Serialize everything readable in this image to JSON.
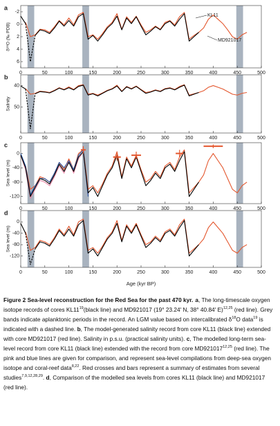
{
  "chart_data": [
    {
      "type": "line",
      "label": "a",
      "ylabel": "δ¹⁸O (‰ PDB)",
      "annotations": [
        "KL11",
        "MD921017"
      ],
      "x": [
        0,
        10,
        20,
        30,
        40,
        50,
        60,
        70,
        80,
        90,
        100,
        110,
        120,
        130,
        140,
        150,
        160,
        170,
        180,
        190,
        200,
        210,
        220,
        230,
        240,
        250,
        260,
        270,
        280,
        290,
        300,
        310,
        320,
        330,
        340,
        350,
        360,
        370,
        380,
        390,
        400,
        410,
        420,
        430,
        440,
        450,
        460,
        470
      ],
      "xlim": [
        0,
        500
      ],
      "xticks": [
        0,
        50,
        100,
        150,
        200,
        250,
        300,
        350,
        400,
        450,
        500
      ],
      "ylim": [
        -3,
        7
      ],
      "yticks": [
        -2,
        0,
        2,
        4,
        6
      ],
      "invert_y": true,
      "bands": [
        [
          14,
          28
        ],
        [
          128,
          142
        ],
        [
          448,
          462
        ]
      ],
      "series": [
        {
          "color": "#e4572e",
          "values": [
            null,
            -0.3,
            2.0,
            1.7,
            0.8,
            0.9,
            1.3,
            0.4,
            -0.6,
            0.1,
            -1.0,
            0.1,
            -1.5,
            -1.9,
            2.0,
            1.7,
            2.4,
            1.5,
            0.4,
            -0.3,
            -1.7,
            0.8,
            -1.2,
            -0.3,
            -1.3,
            0.1,
            1.3,
            0.9,
            0.3,
            0.8,
            -0.3,
            -0.6,
            0.1,
            -1.2,
            -1.9,
            2.4,
            1.8,
            1.3,
            0.6,
            -0.8,
            -1.5,
            -0.8,
            -0.1,
            0.9,
            2.0,
            2.4,
            1.7,
            1.3
          ]
        },
        {
          "color": "#000000",
          "values": [
            -1.3,
            -0.1,
            null,
            1.8,
            0.9,
            1.1,
            1.5,
            0.6,
            -0.5,
            0.3,
            -0.6,
            0.3,
            -1.2,
            -1.7,
            2.4,
            1.8,
            2.7,
            1.7,
            0.6,
            -0.1,
            -1.3,
            0.9,
            -1.0,
            -0.1,
            -1.2,
            0.3,
            1.7,
            1.1,
            0.4,
            0.9,
            -0.1,
            -0.5,
            0.3,
            -0.8,
            -1.7,
            2.7,
            2.0,
            1.3,
            null,
            null,
            null,
            null,
            null,
            null,
            null,
            null,
            null,
            null
          ]
        },
        {
          "color": "#000000",
          "dashed": true,
          "values": [
            null,
            -0.1,
            6,
            1.8,
            null,
            null,
            null,
            null,
            null,
            null,
            null,
            null,
            null,
            null,
            null,
            null,
            null,
            null,
            null,
            null,
            null,
            null,
            null,
            null,
            null,
            null,
            null,
            null,
            null,
            null,
            null,
            null,
            null,
            null,
            null,
            null,
            null,
            null,
            null,
            null,
            null,
            null,
            null,
            null,
            null,
            null,
            null,
            null
          ]
        }
      ]
    },
    {
      "type": "line",
      "label": "b",
      "ylabel": "Salinity",
      "x": [
        0,
        10,
        20,
        30,
        40,
        50,
        60,
        70,
        80,
        90,
        100,
        110,
        120,
        130,
        140,
        150,
        160,
        170,
        180,
        190,
        200,
        210,
        220,
        230,
        240,
        250,
        260,
        270,
        280,
        290,
        300,
        310,
        320,
        330,
        340,
        350,
        360,
        370,
        380,
        390,
        400,
        410,
        420,
        430,
        440,
        450,
        460,
        470
      ],
      "xlim": [
        0,
        500
      ],
      "xticks": [
        0,
        50,
        100,
        150,
        200,
        250,
        300,
        350,
        400,
        450,
        500
      ],
      "ylim": [
        35,
        62
      ],
      "yticks": [
        40,
        50
      ],
      "invert_y": true,
      "bands": [
        [
          14,
          28
        ],
        [
          128,
          142
        ],
        [
          448,
          462
        ]
      ],
      "series": [
        {
          "color": "#e4572e",
          "values": [
            null,
            41.4,
            44,
            43.6,
            42.6,
            42.8,
            43.2,
            42.2,
            41,
            41.8,
            40.6,
            41.8,
            40,
            39.6,
            44,
            43.6,
            44.4,
            43.4,
            42.2,
            41.4,
            39.8,
            42.6,
            40.4,
            41.4,
            40.2,
            41.8,
            43.2,
            42.8,
            42,
            42.6,
            41.4,
            41,
            41.8,
            40.4,
            39.6,
            44.4,
            43.8,
            43.2,
            42.4,
            40.8,
            40,
            40.8,
            41.6,
            42.8,
            44,
            44.4,
            43.6,
            43.2
          ]
        },
        {
          "color": "#000000",
          "values": [
            40.2,
            41.6,
            null,
            43.8,
            42.8,
            43,
            43.4,
            42.4,
            41.2,
            42,
            41,
            42,
            40.4,
            39.8,
            44.4,
            43.8,
            44.8,
            43.6,
            42.4,
            41.6,
            40.2,
            42.8,
            40.6,
            41.6,
            40.4,
            42,
            43.6,
            43,
            42.2,
            42.8,
            41.6,
            41.2,
            42,
            40.8,
            39.8,
            44.8,
            44,
            43.2,
            null,
            null,
            null,
            null,
            null,
            null,
            null,
            null,
            null,
            null
          ]
        },
        {
          "color": "#000000",
          "dashed": true,
          "values": [
            null,
            41.6,
            60,
            43.8,
            null,
            null,
            null,
            null,
            null,
            null,
            null,
            null,
            null,
            null,
            null,
            null,
            null,
            null,
            null,
            null,
            null,
            null,
            null,
            null,
            null,
            null,
            null,
            null,
            null,
            null,
            null,
            null,
            null,
            null,
            null,
            null,
            null,
            null,
            null,
            null,
            null,
            null,
            null,
            null,
            null,
            null,
            null,
            null
          ]
        }
      ]
    },
    {
      "type": "line",
      "label": "c",
      "ylabel": "Sea level (m)",
      "x": [
        0,
        10,
        20,
        30,
        40,
        50,
        60,
        70,
        80,
        90,
        100,
        110,
        120,
        130,
        140,
        150,
        160,
        170,
        180,
        190,
        200,
        210,
        220,
        230,
        240,
        250,
        260,
        270,
        280,
        290,
        300,
        310,
        320,
        330,
        340,
        350,
        360,
        370,
        380,
        390,
        400,
        410,
        420,
        430,
        440,
        450,
        460,
        470
      ],
      "xlim": [
        0,
        500
      ],
      "xticks": [
        0,
        50,
        100,
        150,
        200,
        250,
        300,
        350,
        400,
        450,
        500
      ],
      "ylim": [
        -140,
        30
      ],
      "yticks": [
        0,
        -40,
        -80,
        -120
      ],
      "bands": [
        [
          14,
          28
        ],
        [
          128,
          142
        ],
        [
          448,
          462
        ]
      ],
      "series": [
        {
          "color": "#e4572e",
          "values": [
            null,
            -35,
            -100,
            -90,
            -65,
            -70,
            -80,
            -55,
            -25,
            -45,
            -15,
            -45,
            0,
            10,
            -100,
            -90,
            -110,
            -85,
            -55,
            -35,
            5,
            -65,
            -10,
            -35,
            -5,
            -45,
            -80,
            -70,
            -50,
            -65,
            -35,
            -25,
            -45,
            -10,
            10,
            -110,
            -95,
            -80,
            -60,
            -20,
            0,
            -20,
            -40,
            -70,
            -100,
            -110,
            -90,
            -80
          ]
        },
        {
          "color": "#e889a8",
          "values": [
            -5,
            -45,
            -125,
            -100,
            -75,
            -80,
            -90,
            -65,
            -35,
            -55,
            -20,
            -55,
            -15,
            5,
            -115,
            null,
            null,
            null,
            null,
            null,
            null,
            null,
            null,
            null,
            null,
            null,
            null,
            null,
            null,
            null,
            null,
            null,
            null,
            null,
            null,
            null,
            null,
            null,
            null,
            null,
            null,
            null,
            null,
            null,
            null,
            null,
            null,
            null
          ]
        },
        {
          "color": "#2b5aa8",
          "values": [
            0,
            -35,
            -115,
            -90,
            -70,
            -70,
            -80,
            -55,
            -25,
            -40,
            -20,
            -45,
            -5,
            10,
            -120,
            null,
            null,
            null,
            null,
            null,
            null,
            null,
            null,
            null,
            null,
            null,
            null,
            null,
            null,
            null,
            null,
            null,
            null,
            null,
            null,
            null,
            null,
            null,
            null,
            null,
            null,
            null,
            null,
            null,
            null,
            null,
            null,
            null
          ]
        },
        {
          "color": "#000000",
          "values": [
            -5,
            -40,
            -120,
            -95,
            -70,
            -75,
            -85,
            -60,
            -30,
            -50,
            -25,
            -50,
            -10,
            5,
            -110,
            -95,
            -120,
            -90,
            -60,
            -40,
            -5,
            -70,
            -15,
            -40,
            -10,
            -50,
            -90,
            -75,
            -55,
            -70,
            -40,
            -30,
            -50,
            -20,
            5,
            -120,
            -100,
            -80,
            null,
            null,
            null,
            null,
            null,
            null,
            null,
            null,
            null,
            null
          ]
        }
      ],
      "estimates": {
        "color": "#e4572e",
        "x": [
          130,
          200,
          240,
          330,
          400
        ],
        "values": [
          10,
          -10,
          -5,
          0,
          20
        ],
        "xerr": [
          5,
          8,
          10,
          8,
          20
        ],
        "yerr": [
          10,
          10,
          10,
          10,
          5
        ]
      }
    },
    {
      "type": "line",
      "label": "d",
      "ylabel": "Sea level (m)",
      "xlabel": "Age (kyr BP)",
      "x": [
        0,
        10,
        20,
        30,
        40,
        50,
        60,
        70,
        80,
        90,
        100,
        110,
        120,
        130,
        140,
        150,
        160,
        170,
        180,
        190,
        200,
        210,
        220,
        230,
        240,
        250,
        260,
        270,
        280,
        290,
        300,
        310,
        320,
        330,
        340,
        350,
        360,
        370,
        380,
        390,
        400,
        410,
        420,
        430,
        440,
        450,
        460,
        470
      ],
      "xlim": [
        0,
        500
      ],
      "xticks": [
        0,
        50,
        100,
        150,
        200,
        250,
        300,
        350,
        400,
        450,
        500
      ],
      "ylim": [
        -160,
        40
      ],
      "yticks": [
        0,
        -40,
        -80,
        -120
      ],
      "bands": [
        [
          14,
          28
        ],
        [
          128,
          142
        ],
        [
          448,
          462
        ]
      ],
      "series": [
        {
          "color": "#e4572e",
          "values": [
            null,
            -35,
            -100,
            -90,
            -65,
            -70,
            -80,
            -55,
            -25,
            -45,
            -15,
            -45,
            0,
            10,
            -100,
            -90,
            -110,
            -85,
            -55,
            -35,
            5,
            -65,
            -10,
            -35,
            -5,
            -45,
            -80,
            -70,
            -50,
            -65,
            -35,
            -25,
            -45,
            -10,
            10,
            -110,
            -95,
            -80,
            -60,
            -20,
            0,
            -20,
            -40,
            -70,
            -100,
            -110,
            -90,
            -80
          ]
        },
        {
          "color": "#000000",
          "values": [
            -5,
            -40,
            null,
            -95,
            -70,
            -75,
            -85,
            -60,
            -30,
            -50,
            -25,
            -50,
            -10,
            5,
            -110,
            -95,
            -120,
            -90,
            -60,
            -40,
            -5,
            -70,
            -15,
            -40,
            -10,
            -50,
            -90,
            -75,
            -55,
            -70,
            -40,
            -30,
            -50,
            -20,
            5,
            -120,
            -100,
            -80,
            null,
            null,
            null,
            null,
            null,
            null,
            null,
            null,
            null,
            null
          ]
        },
        {
          "color": "#000000",
          "dashed": true,
          "values": [
            null,
            -40,
            -150,
            -95,
            null,
            null,
            null,
            null,
            null,
            null,
            null,
            null,
            null,
            null,
            null,
            null,
            null,
            null,
            null,
            null,
            null,
            null,
            null,
            null,
            null,
            null,
            null,
            null,
            null,
            null,
            null,
            null,
            null,
            null,
            null,
            null,
            null,
            null,
            null,
            null,
            null,
            null,
            null,
            null,
            null,
            null,
            null,
            null
          ]
        }
      ]
    }
  ],
  "caption": [
    {
      "t": "Figure 2 Sea-level reconstruction for the Red Sea for the past 470 kyr.",
      "s": "b"
    },
    {
      "t": "a",
      "s": "b"
    },
    ", The long-timescale oxygen isotope records of cores KL11",
    {
      "t": "19",
      "s": "sup"
    },
    "(black line) and MD921017 (19° 23.24′ N, 38° 40.84′ E)",
    {
      "t": "12,25",
      "s": "sup"
    },
    " (red line). Grey bands indicate aplanktonic periods in the record. An LGM value based on intercalibrated δ",
    {
      "t": "18",
      "s": "sup"
    },
    "O data",
    {
      "t": "19",
      "s": "sup"
    },
    " is indicated with a dashed line. ",
    {
      "t": "b",
      "s": "b"
    },
    ", The model-generated salinity record from core KL11 (black line) extended with core MD921017 (red line). Salinity in p.s.u. (practical salinity units). ",
    {
      "t": "c",
      "s": "b"
    },
    ", The modelled long-term sea-level record from core KL11 (black line) extended with the record from core MD921017",
    {
      "t": "12,25",
      "s": "sup"
    },
    " (red line). The pink and blue lines are given for comparison, and represent sea-level compilations from deep-sea oxygen isotope and coral-reef data",
    {
      "t": "8,22",
      "s": "sup"
    },
    ". Red crosses and bars represent a summary of estimates from several studies",
    {
      "t": "7,9,12,28,29",
      "s": "sup"
    },
    ". ",
    {
      "t": "d",
      "s": "b"
    },
    ", Comparison of the modelled sea levels from cores KL11 (black line) and MD921017 (red line)."
  ]
}
